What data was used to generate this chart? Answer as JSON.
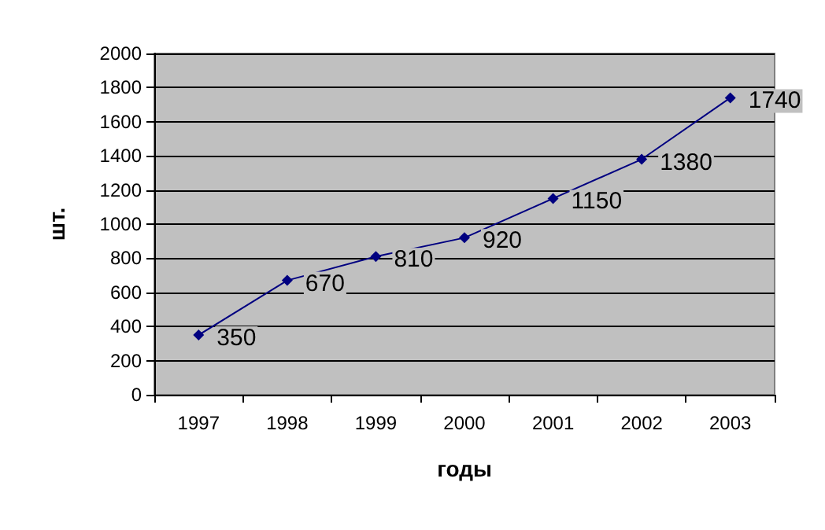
{
  "chart_data": {
    "type": "line",
    "categories": [
      "1997",
      "1998",
      "1999",
      "2000",
      "2001",
      "2002",
      "2003"
    ],
    "series": [
      {
        "color": "#000080",
        "values": [
          350,
          670,
          810,
          920,
          1150,
          1380,
          1740
        ]
      }
    ],
    "xlabel": "годы",
    "ylabel": "шт.",
    "ylim": [
      0,
      2000
    ],
    "yticks": [
      0,
      200,
      400,
      600,
      800,
      1000,
      1200,
      1400,
      1600,
      1800,
      2000
    ],
    "grid": "y",
    "marker": "diamond",
    "line_style": "solid",
    "data_labels": true
  }
}
